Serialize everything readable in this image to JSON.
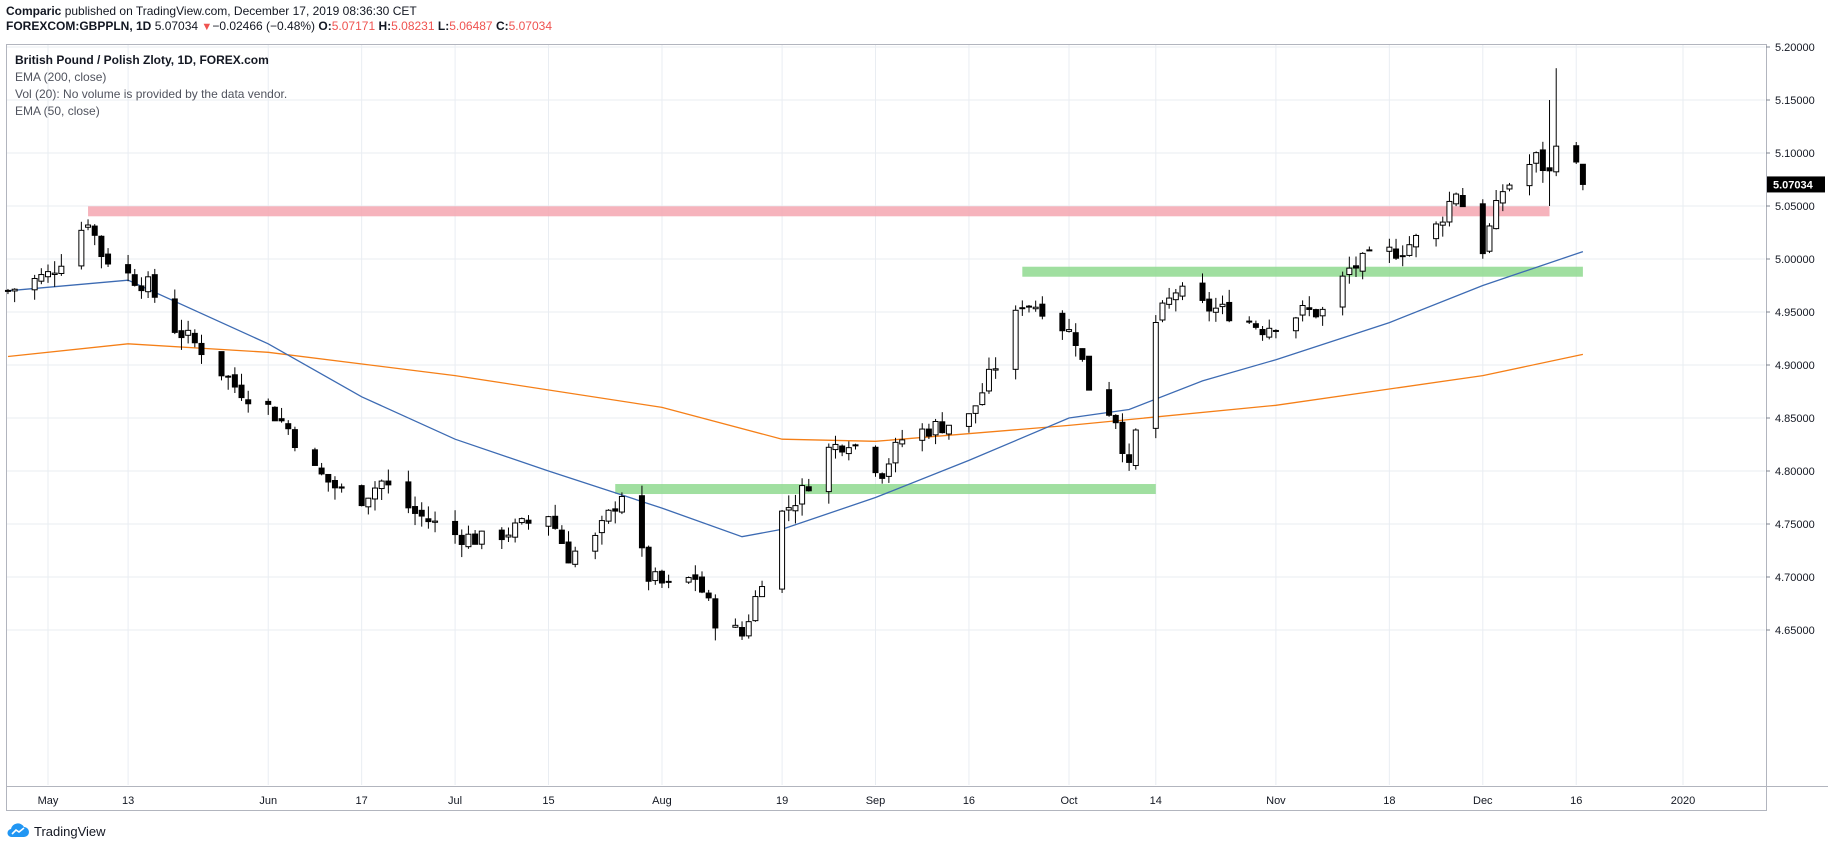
{
  "header": {
    "publisher": "Comparic",
    "published_text": " published on TradingView.com, December 17, 2019 08:36:30 CET",
    "symbol": "FOREXCOM:GBPPLN, 1D",
    "last": "5.07034",
    "change": "−0.02466 (−0.48%)",
    "o_label": "O:",
    "o_value": "5.07171",
    "h_label": "H:",
    "h_value": "5.08231",
    "l_label": "L:",
    "l_value": "5.06487",
    "c_label": "C:",
    "c_value": "5.07034"
  },
  "legend": {
    "title": "British Pound / Polish Zloty, 1D, FOREX.com",
    "ema200": "EMA (200, close)",
    "vol": "Vol (20): No volume is provided by the data vendor.",
    "ema50": "EMA (50, close)"
  },
  "footer": {
    "brand": "TradingView",
    "icon": "tradingview-cloud-icon"
  },
  "colors": {
    "ema50": "#3d6bb3",
    "ema200": "#f57f17",
    "resistance": "#f4a6b0",
    "support": "#8fd98f",
    "price_badge": "#000000",
    "grid": "#e9edf2",
    "axis": "#7f8590"
  },
  "chart_data": {
    "type": "candlestick",
    "instrument": "GBPPLN",
    "timeframe": "1D",
    "ylim": [
      4.61,
      5.215
    ],
    "y_ticks": [
      "5.20000",
      "5.15000",
      "5.10000",
      "5.05000",
      "5.00000",
      "4.95000",
      "4.90000",
      "4.85000",
      "4.80000",
      "4.75000",
      "4.70000",
      "4.65000"
    ],
    "x_ticks": [
      {
        "label": "May",
        "date": "2019-05-01"
      },
      {
        "label": "13",
        "date": "2019-05-13"
      },
      {
        "label": "Jun",
        "date": "2019-06-03"
      },
      {
        "label": "17",
        "date": "2019-06-17"
      },
      {
        "label": "Jul",
        "date": "2019-07-01"
      },
      {
        "label": "15",
        "date": "2019-07-15"
      },
      {
        "label": "Aug",
        "date": "2019-08-01"
      },
      {
        "label": "19",
        "date": "2019-08-19"
      },
      {
        "label": "Sep",
        "date": "2019-09-02"
      },
      {
        "label": "16",
        "date": "2019-09-16"
      },
      {
        "label": "Oct",
        "date": "2019-10-01"
      },
      {
        "label": "14",
        "date": "2019-10-14"
      },
      {
        "label": "Nov",
        "date": "2019-11-01"
      },
      {
        "label": "18",
        "date": "2019-11-18"
      },
      {
        "label": "Dec",
        "date": "2019-12-02"
      },
      {
        "label": "16",
        "date": "2019-12-16"
      },
      {
        "label": "2020",
        "date": "2020-01-01"
      }
    ],
    "last_price": "5.07034",
    "anchors": [
      {
        "date": "2019-04-25",
        "close": 4.97
      },
      {
        "date": "2019-05-01",
        "close": 4.985
      },
      {
        "date": "2019-05-03",
        "close": 5.0
      },
      {
        "date": "2019-05-07",
        "close": 5.038
      },
      {
        "date": "2019-05-09",
        "close": 5.005
      },
      {
        "date": "2019-05-13",
        "close": 4.985
      },
      {
        "date": "2019-05-16",
        "close": 4.975
      },
      {
        "date": "2019-05-20",
        "close": 4.935
      },
      {
        "date": "2019-05-24",
        "close": 4.915
      },
      {
        "date": "2019-05-29",
        "close": 4.88
      },
      {
        "date": "2019-06-03",
        "close": 4.86
      },
      {
        "date": "2019-06-06",
        "close": 4.84
      },
      {
        "date": "2019-06-10",
        "close": 4.8
      },
      {
        "date": "2019-06-14",
        "close": 4.78
      },
      {
        "date": "2019-06-17",
        "close": 4.775
      },
      {
        "date": "2019-06-20",
        "close": 4.79
      },
      {
        "date": "2019-06-25",
        "close": 4.76
      },
      {
        "date": "2019-07-01",
        "close": 4.74
      },
      {
        "date": "2019-07-05",
        "close": 4.735
      },
      {
        "date": "2019-07-10",
        "close": 4.745
      },
      {
        "date": "2019-07-15",
        "close": 4.76
      },
      {
        "date": "2019-07-18",
        "close": 4.72
      },
      {
        "date": "2019-07-22",
        "close": 4.735
      },
      {
        "date": "2019-07-26",
        "close": 4.78
      },
      {
        "date": "2019-07-30",
        "close": 4.7
      },
      {
        "date": "2019-08-02",
        "close": 4.69
      },
      {
        "date": "2019-08-06",
        "close": 4.7
      },
      {
        "date": "2019-08-09",
        "close": 4.66
      },
      {
        "date": "2019-08-13",
        "close": 4.645
      },
      {
        "date": "2019-08-15",
        "close": 4.68
      },
      {
        "date": "2019-08-19",
        "close": 4.76
      },
      {
        "date": "2019-08-22",
        "close": 4.78
      },
      {
        "date": "2019-08-26",
        "close": 4.82
      },
      {
        "date": "2019-08-29",
        "close": 4.83
      },
      {
        "date": "2019-09-03",
        "close": 4.8
      },
      {
        "date": "2019-09-06",
        "close": 4.83
      },
      {
        "date": "2019-09-10",
        "close": 4.84
      },
      {
        "date": "2019-09-16",
        "close": 4.85
      },
      {
        "date": "2019-09-20",
        "close": 4.9
      },
      {
        "date": "2019-09-24",
        "close": 4.96
      },
      {
        "date": "2019-09-27",
        "close": 4.955
      },
      {
        "date": "2019-10-02",
        "close": 4.925
      },
      {
        "date": "2019-10-04",
        "close": 4.88
      },
      {
        "date": "2019-10-08",
        "close": 4.85
      },
      {
        "date": "2019-10-10",
        "close": 4.8
      },
      {
        "date": "2019-10-14",
        "close": 4.94
      },
      {
        "date": "2019-10-17",
        "close": 4.97
      },
      {
        "date": "2019-10-21",
        "close": 4.955
      },
      {
        "date": "2019-10-25",
        "close": 4.95
      },
      {
        "date": "2019-10-30",
        "close": 4.935
      },
      {
        "date": "2019-11-05",
        "close": 4.95
      },
      {
        "date": "2019-11-08",
        "close": 4.95
      },
      {
        "date": "2019-11-12",
        "close": 4.99
      },
      {
        "date": "2019-11-15",
        "close": 5.0
      },
      {
        "date": "2019-11-20",
        "close": 5.01
      },
      {
        "date": "2019-11-25",
        "close": 5.03
      },
      {
        "date": "2019-11-28",
        "close": 5.065
      },
      {
        "date": "2019-12-02",
        "close": 5.01
      },
      {
        "date": "2019-12-05",
        "close": 5.065
      },
      {
        "date": "2019-12-10",
        "close": 5.095
      },
      {
        "date": "2019-12-12",
        "close": 5.08
      },
      {
        "date": "2019-12-13",
        "close": 5.115
      },
      {
        "date": "2019-12-16",
        "close": 5.085
      },
      {
        "date": "2019-12-17",
        "close": 5.07
      }
    ],
    "ema50": [
      {
        "date": "2019-04-25",
        "value": 4.97
      },
      {
        "date": "2019-05-13",
        "value": 4.98
      },
      {
        "date": "2019-06-03",
        "value": 4.92
      },
      {
        "date": "2019-06-17",
        "value": 4.87
      },
      {
        "date": "2019-07-01",
        "value": 4.83
      },
      {
        "date": "2019-07-15",
        "value": 4.8
      },
      {
        "date": "2019-08-01",
        "value": 4.765
      },
      {
        "date": "2019-08-13",
        "value": 4.738
      },
      {
        "date": "2019-08-19",
        "value": 4.745
      },
      {
        "date": "2019-09-02",
        "value": 4.775
      },
      {
        "date": "2019-09-16",
        "value": 4.81
      },
      {
        "date": "2019-10-01",
        "value": 4.85
      },
      {
        "date": "2019-10-10",
        "value": 4.858
      },
      {
        "date": "2019-10-21",
        "value": 4.885
      },
      {
        "date": "2019-11-01",
        "value": 4.905
      },
      {
        "date": "2019-11-18",
        "value": 4.94
      },
      {
        "date": "2019-12-02",
        "value": 4.975
      },
      {
        "date": "2019-12-17",
        "value": 5.007
      }
    ],
    "ema200": [
      {
        "date": "2019-04-25",
        "value": 4.908
      },
      {
        "date": "2019-05-13",
        "value": 4.92
      },
      {
        "date": "2019-06-03",
        "value": 4.912
      },
      {
        "date": "2019-07-01",
        "value": 4.89
      },
      {
        "date": "2019-08-01",
        "value": 4.86
      },
      {
        "date": "2019-08-19",
        "value": 4.83
      },
      {
        "date": "2019-09-02",
        "value": 4.828
      },
      {
        "date": "2019-10-01",
        "value": 4.843
      },
      {
        "date": "2019-11-01",
        "value": 4.862
      },
      {
        "date": "2019-12-02",
        "value": 4.89
      },
      {
        "date": "2019-12-17",
        "value": 4.91
      }
    ],
    "levels": [
      {
        "name": "resistance-zone",
        "color": "resistance",
        "y": 5.045,
        "from": "2019-05-07",
        "to": "2019-12-12"
      },
      {
        "name": "support-zone-upper",
        "color": "support",
        "y": 4.988,
        "from": "2019-09-24",
        "to": "2019-12-17"
      },
      {
        "name": "support-zone-lower",
        "color": "support",
        "y": 4.783,
        "from": "2019-07-25",
        "to": "2019-10-14"
      }
    ]
  }
}
